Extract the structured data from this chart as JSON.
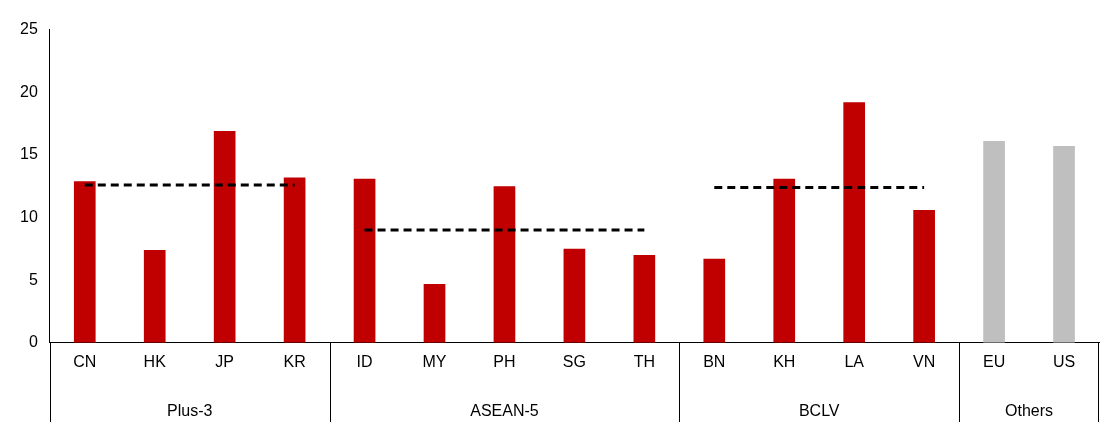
{
  "chart_data": {
    "type": "bar",
    "categories": [
      "CN",
      "HK",
      "JP",
      "KR",
      "ID",
      "MY",
      "PH",
      "SG",
      "TH",
      "BN",
      "KH",
      "LA",
      "VN",
      "EU",
      "US"
    ],
    "values": [
      12.9,
      7.4,
      16.9,
      13.2,
      13.1,
      4.7,
      12.5,
      7.5,
      7.0,
      6.7,
      13.1,
      19.2,
      10.6,
      16.1,
      15.7
    ],
    "colors": [
      "#c00000",
      "#c00000",
      "#c00000",
      "#c00000",
      "#c00000",
      "#c00000",
      "#c00000",
      "#c00000",
      "#c00000",
      "#c00000",
      "#c00000",
      "#c00000",
      "#c00000",
      "#bfbfbf",
      "#bfbfbf"
    ],
    "series": [
      {
        "type": "line",
        "x": [
          "CN",
          "KR"
        ],
        "values": [
          12.6,
          12.6
        ],
        "color": "#000000",
        "line_style": "dashed"
      },
      {
        "type": "line",
        "x": [
          "ID",
          "MY",
          "PH",
          "SG",
          "TH"
        ],
        "values": [
          9.0,
          9.0,
          9.0,
          9.0,
          9.0
        ],
        "color": "#000000",
        "line_style": "dashed"
      },
      {
        "type": "line",
        "x": [
          "BN",
          "VN"
        ],
        "values": [
          12.4,
          12.4
        ],
        "color": "#000000",
        "line_style": "dashed"
      }
    ],
    "annotations": [
      "Plus-3",
      "ASEAN-5",
      "BCLV",
      "Others"
    ],
    "ylim": [
      0,
      25
    ],
    "yticks": [
      0,
      5,
      10,
      15,
      20,
      25
    ],
    "grid": false,
    "legend": false,
    "marker": "none"
  }
}
